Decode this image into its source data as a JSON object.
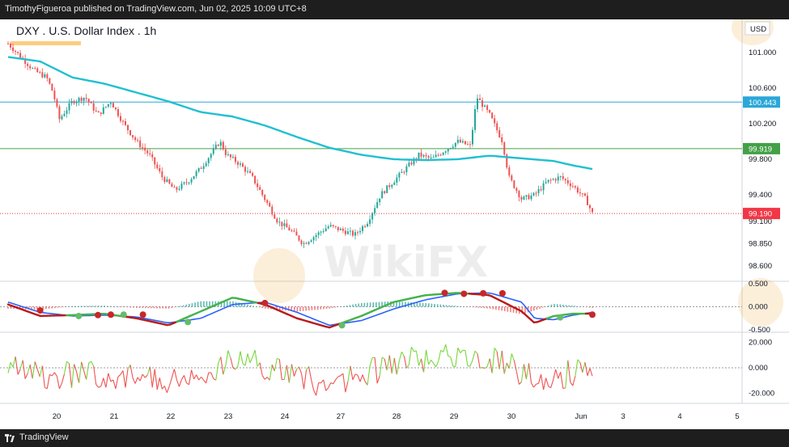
{
  "header": {
    "published": "TimothyFigueroa published on TradingView.com, Jun 02, 2025 10:09 UTC+8"
  },
  "footer": {
    "brand": "TradingView"
  },
  "watermark": {
    "text": "WikiFX"
  },
  "colors": {
    "up": "#26a69a",
    "down": "#ef5350",
    "ma": "#21bfd0",
    "macd_fast": "#45b24a",
    "macd_signal": "#2962ff",
    "macd_red": "#b71c1c",
    "rsi_up": "#76d83c",
    "rsi_down": "#ef5350",
    "hline_blue": "#2aa7d8",
    "hline_green": "#43a047",
    "price_red": "#f23645"
  },
  "chart_data": {
    "type": "candlestick",
    "title": "DXY . U.S. Dollar Index . 1h",
    "currency": "USD",
    "y_ticks": [
      "101.000",
      "100.600",
      "100.200",
      "99.800",
      "99.400",
      "99.100",
      "98.850",
      "98.600"
    ],
    "ylim": [
      98.5,
      101.3
    ],
    "x_ticks": [
      "20",
      "21",
      "22",
      "23",
      "24",
      "27",
      "28",
      "29",
      "30",
      "Jun",
      "3",
      "4",
      "5"
    ],
    "horizontal_lines": [
      {
        "value": 100.443,
        "label": "100.443",
        "color": "#2aa7d8"
      },
      {
        "value": 99.919,
        "label": "99.919",
        "color": "#43a047"
      }
    ],
    "last_price": {
      "value": 99.19,
      "label": "99.190"
    },
    "price_path": [
      [
        0,
        101.1
      ],
      [
        2,
        100.95
      ],
      [
        4,
        100.8
      ],
      [
        6,
        100.72
      ],
      [
        7,
        100.55
      ],
      [
        8,
        100.25
      ],
      [
        10,
        100.45
      ],
      [
        12,
        100.5
      ],
      [
        14,
        100.3
      ],
      [
        16,
        100.45
      ],
      [
        18,
        100.2
      ],
      [
        20,
        100.0
      ],
      [
        22,
        99.85
      ],
      [
        24,
        99.6
      ],
      [
        26,
        99.45
      ],
      [
        28,
        99.55
      ],
      [
        30,
        99.7
      ],
      [
        32,
        99.9
      ],
      [
        33,
        100.0
      ],
      [
        34,
        99.85
      ],
      [
        36,
        99.75
      ],
      [
        38,
        99.6
      ],
      [
        40,
        99.35
      ],
      [
        42,
        99.1
      ],
      [
        44,
        99.0
      ],
      [
        46,
        98.85
      ],
      [
        48,
        98.95
      ],
      [
        50,
        99.05
      ],
      [
        52,
        99.0
      ],
      [
        54,
        98.95
      ],
      [
        56,
        99.1
      ],
      [
        58,
        99.4
      ],
      [
        60,
        99.55
      ],
      [
        62,
        99.7
      ],
      [
        64,
        99.85
      ],
      [
        66,
        99.8
      ],
      [
        68,
        99.9
      ],
      [
        70,
        100.0
      ],
      [
        72,
        99.95
      ],
      [
        73,
        100.5
      ],
      [
        75,
        100.3
      ],
      [
        77,
        100.0
      ],
      [
        78,
        99.6
      ],
      [
        80,
        99.35
      ],
      [
        82,
        99.4
      ],
      [
        84,
        99.55
      ],
      [
        86,
        99.6
      ],
      [
        88,
        99.5
      ],
      [
        90,
        99.35
      ],
      [
        91,
        99.19
      ]
    ],
    "ma_path": [
      [
        0,
        100.95
      ],
      [
        5,
        100.9
      ],
      [
        10,
        100.72
      ],
      [
        15,
        100.65
      ],
      [
        20,
        100.55
      ],
      [
        25,
        100.45
      ],
      [
        30,
        100.33
      ],
      [
        35,
        100.28
      ],
      [
        40,
        100.18
      ],
      [
        45,
        100.05
      ],
      [
        50,
        99.93
      ],
      [
        55,
        99.85
      ],
      [
        60,
        99.8
      ],
      [
        65,
        99.79
      ],
      [
        70,
        99.8
      ],
      [
        75,
        99.84
      ],
      [
        80,
        99.81
      ],
      [
        85,
        99.78
      ],
      [
        88,
        99.73
      ],
      [
        91,
        99.69
      ]
    ],
    "macd": {
      "y_ticks": [
        "0.500",
        "0.000",
        "-0.500"
      ],
      "ylim": [
        -0.55,
        0.55
      ],
      "fast": [
        [
          0,
          0.05
        ],
        [
          5,
          -0.2
        ],
        [
          10,
          -0.18
        ],
        [
          15,
          -0.15
        ],
        [
          20,
          -0.25
        ],
        [
          25,
          -0.4
        ],
        [
          30,
          -0.1
        ],
        [
          35,
          0.2
        ],
        [
          40,
          0.05
        ],
        [
          45,
          -0.25
        ],
        [
          50,
          -0.45
        ],
        [
          55,
          -0.2
        ],
        [
          60,
          0.1
        ],
        [
          65,
          0.25
        ],
        [
          70,
          0.3
        ],
        [
          75,
          0.25
        ],
        [
          80,
          -0.1
        ],
        [
          82,
          -0.35
        ],
        [
          85,
          -0.2
        ],
        [
          88,
          -0.15
        ],
        [
          91,
          -0.15
        ]
      ],
      "signal": [
        [
          0,
          0.1
        ],
        [
          5,
          -0.12
        ],
        [
          10,
          -0.2
        ],
        [
          15,
          -0.18
        ],
        [
          20,
          -0.22
        ],
        [
          25,
          -0.35
        ],
        [
          30,
          -0.25
        ],
        [
          35,
          0.05
        ],
        [
          40,
          0.1
        ],
        [
          45,
          -0.12
        ],
        [
          50,
          -0.4
        ],
        [
          55,
          -0.3
        ],
        [
          60,
          -0.05
        ],
        [
          65,
          0.15
        ],
        [
          70,
          0.28
        ],
        [
          75,
          0.3
        ],
        [
          80,
          0.1
        ],
        [
          82,
          -0.25
        ],
        [
          85,
          -0.28
        ],
        [
          88,
          -0.18
        ],
        [
          91,
          -0.12
        ]
      ],
      "dots": [
        {
          "x": 5,
          "y": -0.08,
          "c": "red"
        },
        {
          "x": 11,
          "y": -0.2,
          "c": "green"
        },
        {
          "x": 14,
          "y": -0.18,
          "c": "red"
        },
        {
          "x": 16,
          "y": -0.17,
          "c": "red"
        },
        {
          "x": 18,
          "y": -0.17,
          "c": "green"
        },
        {
          "x": 21,
          "y": -0.17,
          "c": "red"
        },
        {
          "x": 28,
          "y": -0.33,
          "c": "green"
        },
        {
          "x": 40,
          "y": 0.08,
          "c": "red"
        },
        {
          "x": 52,
          "y": -0.4,
          "c": "green"
        },
        {
          "x": 68,
          "y": 0.3,
          "c": "red"
        },
        {
          "x": 71,
          "y": 0.28,
          "c": "red"
        },
        {
          "x": 74,
          "y": 0.29,
          "c": "red"
        },
        {
          "x": 77,
          "y": 0.29,
          "c": "red"
        },
        {
          "x": 86,
          "y": -0.23,
          "c": "green"
        },
        {
          "x": 91,
          "y": -0.17,
          "c": "red"
        }
      ]
    },
    "rsi": {
      "y_ticks": [
        "20.000",
        "0.000",
        "-20.000"
      ],
      "ylim": [
        -28,
        28
      ]
    }
  }
}
